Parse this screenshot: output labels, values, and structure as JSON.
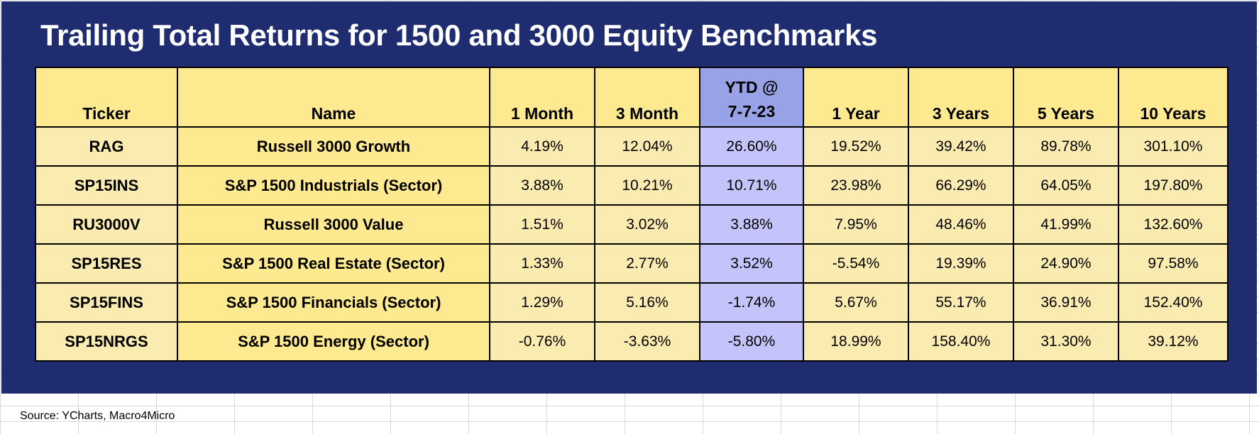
{
  "title": "Trailing Total Returns for 1500 and 3000 Equity Benchmarks",
  "headers": {
    "ticker": "Ticker",
    "name": "Name",
    "m1": "1 Month",
    "m3": "3 Month",
    "ytd_line1": "YTD @",
    "ytd_line2": "7-7-23",
    "y1": "1 Year",
    "y3": "3 Years",
    "y5": "5 Years",
    "y10": "10 Years"
  },
  "rows": [
    {
      "ticker": "RAG",
      "name": "Russell 3000 Growth",
      "m1": "4.19%",
      "m3": "12.04%",
      "ytd": "26.60%",
      "y1": "19.52%",
      "y3": "39.42%",
      "y5": "89.78%",
      "y10": "301.10%"
    },
    {
      "ticker": "SP15INS",
      "name": "S&P 1500 Industrials (Sector)",
      "m1": "3.88%",
      "m3": "10.21%",
      "ytd": "10.71%",
      "y1": "23.98%",
      "y3": "66.29%",
      "y5": "64.05%",
      "y10": "197.80%"
    },
    {
      "ticker": "RU3000V",
      "name": "Russell 3000 Value",
      "m1": "1.51%",
      "m3": "3.02%",
      "ytd": "3.88%",
      "y1": "7.95%",
      "y3": "48.46%",
      "y5": "41.99%",
      "y10": "132.60%"
    },
    {
      "ticker": "SP15RES",
      "name": "S&P 1500 Real Estate (Sector)",
      "m1": "1.33%",
      "m3": "2.77%",
      "ytd": "3.52%",
      "y1": "-5.54%",
      "y3": "19.39%",
      "y5": "24.90%",
      "y10": "97.58%"
    },
    {
      "ticker": "SP15FINS",
      "name": "S&P 1500 Financials (Sector)",
      "m1": "1.29%",
      "m3": "5.16%",
      "ytd": "-1.74%",
      "y1": "5.67%",
      "y3": "55.17%",
      "y5": "36.91%",
      "y10": "152.40%"
    },
    {
      "ticker": "SP15NRGS",
      "name": "S&P 1500 Energy (Sector)",
      "m1": "-0.76%",
      "m3": "-3.63%",
      "ytd": "-5.80%",
      "y1": "18.99%",
      "y3": "158.40%",
      "y5": "31.30%",
      "y10": "39.12%"
    }
  ],
  "source": "Source: YCharts, Macro4Micro",
  "colors": {
    "panel_background": "#1f2c6f",
    "header_yellow": "#fde98f",
    "cell_yellow": "#faebb0",
    "ytd_header": "#97a3e6",
    "ytd_cell": "#c4c4fb"
  }
}
